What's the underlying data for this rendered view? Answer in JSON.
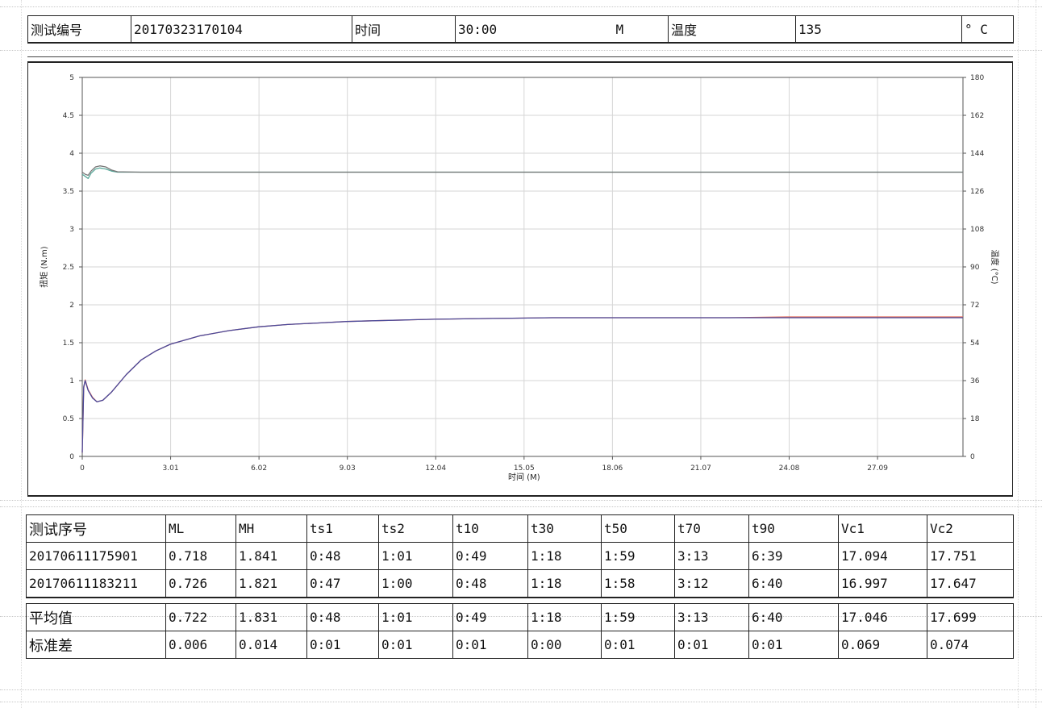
{
  "header": {
    "test_id_label": "测试编号",
    "test_id_value": "20170323170104",
    "time_label": "时间",
    "time_value": "30:00",
    "time_unit": "M",
    "temp_label": "温度",
    "temp_value": "135",
    "temp_unit": "° C"
  },
  "chart_data": {
    "type": "line",
    "title": "",
    "xlabel": "时间 (M)",
    "ylabel_left": "扭矩 (N.m)",
    "ylabel_right": "温度 (°C)",
    "xlim": [
      0,
      30
    ],
    "ylim_left": [
      0,
      5
    ],
    "ylim_right": [
      0,
      180
    ],
    "x_ticks": [
      "0",
      "3.01",
      "6.02",
      "9.03",
      "12.04",
      "15.05",
      "18.06",
      "21.07",
      "24.08",
      "27.09"
    ],
    "x_tick_values": [
      0,
      3.01,
      6.02,
      9.03,
      12.04,
      15.05,
      18.06,
      21.07,
      24.08,
      27.09
    ],
    "y_left_ticks": [
      "0",
      "0.5",
      "1",
      "1.5",
      "2",
      "2.5",
      "3",
      "3.5",
      "4",
      "4.5",
      "5"
    ],
    "y_left_tick_values": [
      0,
      0.5,
      1,
      1.5,
      2,
      2.5,
      3,
      3.5,
      4,
      4.5,
      5
    ],
    "y_right_ticks": [
      "0",
      "18",
      "36",
      "54",
      "72",
      "90",
      "108",
      "126",
      "144",
      "162",
      "180"
    ],
    "y_right_tick_values": [
      0,
      18,
      36,
      54,
      72,
      90,
      108,
      126,
      144,
      162,
      180
    ],
    "grid": true,
    "series": [
      {
        "color": "#e06a5a",
        "axis": "left",
        "x": [
          0,
          0.05,
          0.1,
          0.2,
          0.35,
          0.5,
          0.7,
          1.0,
          1.5,
          2.0,
          2.5,
          3.0,
          4.0,
          5.0,
          6.0,
          7.0,
          8.0,
          9.0,
          10.0,
          11.0,
          12.0,
          14.0,
          16.0,
          18.0,
          20.0,
          22.0,
          24.0,
          26.0,
          28.0,
          30.0
        ],
        "y": [
          0.05,
          0.9,
          1.01,
          0.88,
          0.78,
          0.72,
          0.74,
          0.85,
          1.08,
          1.27,
          1.39,
          1.48,
          1.59,
          1.66,
          1.71,
          1.74,
          1.76,
          1.78,
          1.79,
          1.8,
          1.81,
          1.82,
          1.83,
          1.83,
          1.83,
          1.83,
          1.84,
          1.84,
          1.84,
          1.84
        ]
      },
      {
        "color": "#4a4a9a",
        "axis": "left",
        "x": [
          0,
          0.05,
          0.1,
          0.2,
          0.35,
          0.5,
          0.7,
          1.0,
          1.5,
          2.0,
          2.5,
          3.0,
          4.0,
          5.0,
          6.0,
          7.0,
          8.0,
          9.0,
          10.0,
          11.0,
          12.0,
          14.0,
          16.0,
          18.0,
          20.0,
          22.0,
          24.0,
          26.0,
          28.0,
          30.0
        ],
        "y": [
          0.05,
          0.92,
          1.0,
          0.87,
          0.77,
          0.72,
          0.74,
          0.85,
          1.08,
          1.27,
          1.39,
          1.48,
          1.59,
          1.66,
          1.71,
          1.74,
          1.76,
          1.78,
          1.79,
          1.8,
          1.81,
          1.82,
          1.83,
          1.83,
          1.83,
          1.83,
          1.83,
          1.83,
          1.83,
          1.83
        ]
      },
      {
        "color": "#5aa89a",
        "axis": "right",
        "x": [
          0,
          0.1,
          0.2,
          0.3,
          0.45,
          0.6,
          0.8,
          1.0,
          1.2,
          2.0,
          5.0,
          10.0,
          15.0,
          20.0,
          25.0,
          30.0
        ],
        "y": [
          134.0,
          133.0,
          132.0,
          134.5,
          136.5,
          137.0,
          136.5,
          135.5,
          135.0,
          135.0,
          135.0,
          135.0,
          135.0,
          135.0,
          135.0,
          135.0
        ]
      },
      {
        "color": "#777777",
        "axis": "right",
        "x": [
          0,
          0.1,
          0.2,
          0.3,
          0.45,
          0.6,
          0.8,
          1.0,
          1.2,
          2.0,
          5.0,
          10.0,
          15.0,
          20.0,
          25.0,
          30.0
        ],
        "y": [
          135.0,
          134.0,
          133.5,
          135.5,
          137.5,
          138.0,
          137.5,
          136.0,
          135.2,
          135.0,
          135.0,
          135.0,
          135.0,
          135.0,
          135.0,
          135.0
        ]
      }
    ]
  },
  "results": {
    "columns": [
      "测试序号",
      "ML",
      "MH",
      "ts1",
      "ts2",
      "t10",
      "t30",
      "t50",
      "t70",
      "t90",
      "Vc1",
      "Vc2"
    ],
    "rows": [
      [
        "20170611175901",
        "0.718",
        "1.841",
        "0:48",
        "1:01",
        "0:49",
        "1:18",
        "1:59",
        "3:13",
        "6:39",
        "17.094",
        "17.751"
      ],
      [
        "20170611183211",
        "0.726",
        "1.821",
        "0:47",
        "1:00",
        "0:48",
        "1:18",
        "1:58",
        "3:12",
        "6:40",
        "16.997",
        "17.647"
      ]
    ],
    "summary": [
      [
        "平均值",
        "0.722",
        "1.831",
        "0:48",
        "1:01",
        "0:49",
        "1:18",
        "1:59",
        "3:13",
        "6:40",
        "17.046",
        "17.699"
      ],
      [
        "标准差",
        "0.006",
        "0.014",
        "0:01",
        "0:01",
        "0:01",
        "0:00",
        "0:01",
        "0:01",
        "0:01",
        "0.069",
        "0.074"
      ]
    ]
  }
}
